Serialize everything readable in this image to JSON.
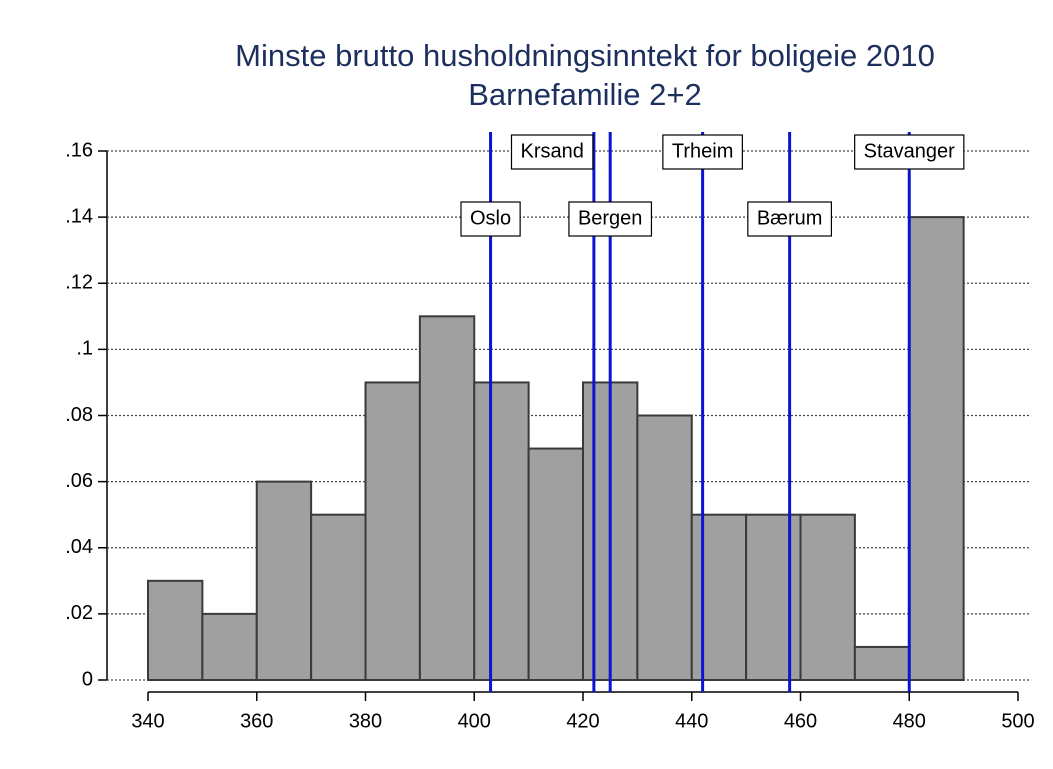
{
  "chart_data": {
    "type": "histogram",
    "title": "Minste brutto husholdningsinntekt for boligeie 2010",
    "subtitle": "Barnefamilie 2+2",
    "bins": [
      340,
      350,
      360,
      370,
      380,
      390,
      400,
      410,
      420,
      430,
      440,
      450,
      460,
      470,
      480,
      490
    ],
    "values": [
      0.03,
      0.02,
      0.06,
      0.05,
      0.09,
      0.11,
      0.09,
      0.07,
      0.09,
      0.08,
      0.05,
      0.05,
      0.05,
      0.01,
      0.14
    ],
    "color": "#a0a0a0",
    "edge_color": "#3a3a3a",
    "xlim": [
      340,
      500
    ],
    "xticks": [
      340,
      360,
      380,
      400,
      420,
      440,
      460,
      480,
      500
    ],
    "ylim": [
      0,
      0.16
    ],
    "yticks": [
      0,
      {
        "value": 0.02,
        "label": ".02"
      },
      {
        "value": 0.04,
        "label": ".04"
      },
      {
        "value": 0.06,
        "label": ".06"
      },
      {
        "value": 0.08,
        "label": ".08"
      },
      {
        "value": 0.1,
        "label": ".1"
      },
      {
        "value": 0.12,
        "label": ".12"
      },
      {
        "value": 0.14,
        "label": ".14"
      },
      {
        "value": 0.16,
        "label": ".16"
      }
    ],
    "grid": true,
    "reference_lines": [
      {
        "name": "Oslo",
        "x": 403
      },
      {
        "name": "Krsand",
        "x": 422
      },
      {
        "name": "Bergen",
        "x": 425
      },
      {
        "name": "Trheim",
        "x": 442
      },
      {
        "name": "Bærum",
        "x": 458
      },
      {
        "name": "Stavanger",
        "x": 480
      }
    ],
    "reference_color": "#0a14d2"
  }
}
